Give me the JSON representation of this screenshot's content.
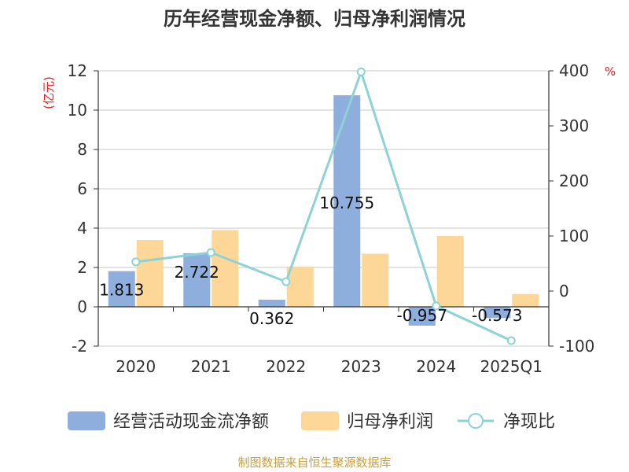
{
  "chart_data": {
    "type": "bar+line",
    "title": "历年经营现金净额、归母净利润情况",
    "categories": [
      "2020",
      "2021",
      "2022",
      "2023",
      "2024",
      "2025Q1"
    ],
    "series": [
      {
        "name": "经营活动现金流净额",
        "type": "bar",
        "axis": "left",
        "color": "#8eaedd",
        "values": [
          1.813,
          2.722,
          0.362,
          10.755,
          -0.957,
          -0.573
        ],
        "labels": [
          "1.813",
          "2.722",
          "0.362",
          "10.755",
          "-0.957",
          "-0.573"
        ]
      },
      {
        "name": "归母净利润",
        "type": "bar",
        "axis": "left",
        "color": "#fdd797",
        "values": [
          3.4,
          3.9,
          2.05,
          2.7,
          3.6,
          0.65
        ]
      },
      {
        "name": "净现比",
        "type": "line",
        "axis": "right",
        "color": "#8dd3d6",
        "values": [
          53,
          70,
          17,
          398,
          -27,
          -90
        ]
      }
    ],
    "y_left": {
      "label": "(亿元)",
      "min": -2,
      "max": 12,
      "ticks": [
        -2,
        0,
        2,
        4,
        6,
        8,
        10,
        12
      ]
    },
    "y_right": {
      "label": "%",
      "min": -100,
      "max": 400,
      "ticks": [
        -100,
        0,
        100,
        200,
        300,
        400
      ]
    },
    "legend_position": "bottom",
    "source": "制图数据来自恒生聚源数据库"
  }
}
